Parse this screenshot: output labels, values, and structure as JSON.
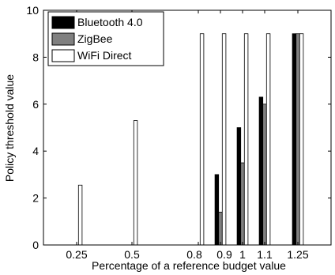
{
  "chart_data": {
    "type": "bar",
    "title": "",
    "xlabel": "Percentage of a reference budget value",
    "ylabel": "Policy threshold value",
    "x_tick_labels": [
      "0.25",
      "0.5",
      "0.8",
      "0.9",
      "1",
      "1.1",
      "1.25"
    ],
    "x_ticks": [
      0.25,
      0.5,
      0.8,
      0.9,
      1.0,
      1.1,
      1.25
    ],
    "xlim": [
      0.1,
      1.4
    ],
    "ylim": [
      0,
      10
    ],
    "y_ticks": [
      0,
      2,
      4,
      6,
      8,
      10
    ],
    "grid": false,
    "legend_position": "top-left",
    "series": [
      {
        "name": "Bluetooth 4.0",
        "color": "#000000",
        "x": [
          0.9,
          1.0,
          1.1,
          1.25
        ],
        "values": [
          3.0,
          5.0,
          6.3,
          9.0
        ]
      },
      {
        "name": "ZigBee",
        "color": "#808080",
        "x": [
          0.9,
          1.0,
          1.1,
          1.25
        ],
        "values": [
          1.4,
          3.5,
          6.0,
          9.0
        ]
      },
      {
        "name": "WiFi Direct",
        "color": "#ffffff",
        "x": [
          0.25,
          0.5,
          0.8,
          0.9,
          1.0,
          1.1,
          1.25
        ],
        "values": [
          2.55,
          5.3,
          9.0,
          9.0,
          9.0,
          9.0,
          9.0
        ]
      }
    ]
  }
}
